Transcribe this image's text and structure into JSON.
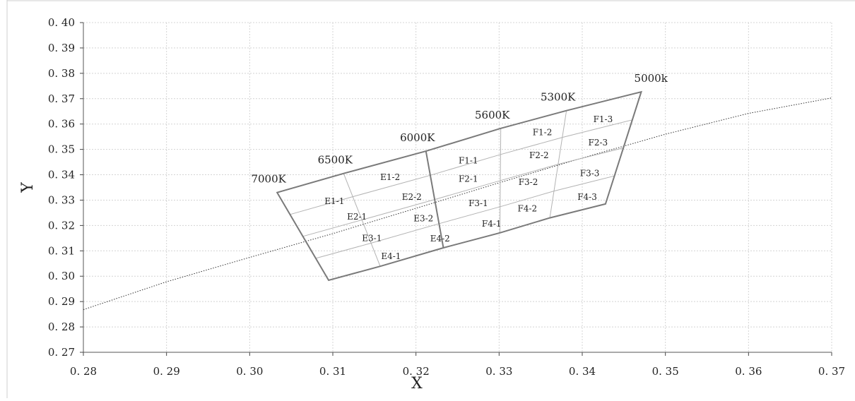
{
  "chart_data": {
    "type": "line",
    "title": "",
    "xlabel": "X",
    "ylabel": "Y",
    "xlim": [
      0.28,
      0.37
    ],
    "ylim": [
      0.27,
      0.4
    ],
    "x_ticks": [
      "0. 28",
      "0. 29",
      "0. 30",
      "0. 31",
      "0. 32",
      "0. 33",
      "0. 34",
      "0. 35",
      "0. 36",
      "0. 37"
    ],
    "y_ticks": [
      "0. 27",
      "0. 28",
      "0. 29",
      "0. 30",
      "0. 31",
      "0. 32",
      "0. 33",
      "0. 34",
      "0. 35",
      "0. 36",
      "0. 37",
      "0. 38",
      "0. 39",
      "0. 40"
    ],
    "grid": true,
    "series": [
      {
        "style": "dotted",
        "x": [
          0.28,
          0.29,
          0.3,
          0.31,
          0.32,
          0.33,
          0.34,
          0.35,
          0.36,
          0.37
        ],
        "y": [
          0.2868,
          0.2978,
          0.3074,
          0.3168,
          0.3268,
          0.3368,
          0.3466,
          0.356,
          0.3642,
          0.3703
        ]
      }
    ],
    "outline": {
      "upper": [
        [
          0.3033,
          0.333
        ],
        [
          0.3113,
          0.3405
        ],
        [
          0.3212,
          0.3493
        ],
        [
          0.3302,
          0.3583
        ],
        [
          0.3381,
          0.3653
        ],
        [
          0.3471,
          0.3727
        ]
      ],
      "lower": [
        [
          0.3095,
          0.2984
        ],
        [
          0.3157,
          0.3039
        ],
        [
          0.3233,
          0.3112
        ],
        [
          0.3301,
          0.3171
        ],
        [
          0.3361,
          0.323
        ],
        [
          0.3428,
          0.3285
        ]
      ]
    },
    "temperature_labels": [
      {
        "text": "7000K",
        "x": 0.3033,
        "y": 0.333
      },
      {
        "text": "6500K",
        "x": 0.3113,
        "y": 0.3405
      },
      {
        "text": "6000K",
        "x": 0.3212,
        "y": 0.3493
      },
      {
        "text": "5600K",
        "x": 0.3302,
        "y": 0.3583
      },
      {
        "text": "5300K",
        "x": 0.3381,
        "y": 0.3653
      },
      {
        "text": "5000k",
        "x": 0.3471,
        "y": 0.3727
      }
    ],
    "bins": [
      {
        "label": "E1-1",
        "x": 0.3102,
        "y": 0.3296
      },
      {
        "label": "E1-2",
        "x": 0.3169,
        "y": 0.3391
      },
      {
        "label": "E2-1",
        "x": 0.3129,
        "y": 0.3234
      },
      {
        "label": "E2-2",
        "x": 0.3195,
        "y": 0.3312
      },
      {
        "label": "E3-1",
        "x": 0.3147,
        "y": 0.315
      },
      {
        "label": "E3-2",
        "x": 0.3209,
        "y": 0.3227
      },
      {
        "label": "E4-1",
        "x": 0.317,
        "y": 0.3078
      },
      {
        "label": "E4-2",
        "x": 0.3229,
        "y": 0.3148
      },
      {
        "label": "F1-1",
        "x": 0.3263,
        "y": 0.3456
      },
      {
        "label": "F1-2",
        "x": 0.3352,
        "y": 0.3567
      },
      {
        "label": "F1-3",
        "x": 0.3425,
        "y": 0.3618
      },
      {
        "label": "F2-1",
        "x": 0.3263,
        "y": 0.3384
      },
      {
        "label": "F2-2",
        "x": 0.3348,
        "y": 0.3477
      },
      {
        "label": "F2-3",
        "x": 0.3419,
        "y": 0.3527
      },
      {
        "label": "F3-1",
        "x": 0.3275,
        "y": 0.3287
      },
      {
        "label": "F3-2",
        "x": 0.3335,
        "y": 0.3371
      },
      {
        "label": "F3-3",
        "x": 0.3409,
        "y": 0.3405
      },
      {
        "label": "F4-1",
        "x": 0.3291,
        "y": 0.3207
      },
      {
        "label": "F4-2",
        "x": 0.3334,
        "y": 0.3266
      },
      {
        "label": "F4-3",
        "x": 0.3406,
        "y": 0.3313
      }
    ],
    "colors": {
      "outline": "#7a7a7a",
      "divider": "#b3b3b3",
      "grid": "#d4d4d4",
      "curve": "#333333",
      "text": "#222222"
    }
  }
}
